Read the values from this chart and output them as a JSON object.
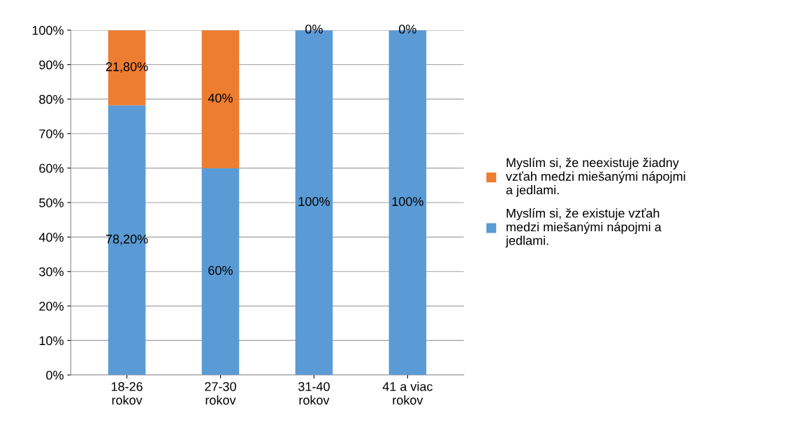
{
  "chart_data": {
    "type": "bar",
    "stacked": true,
    "categories": [
      "18-26\nrokov",
      "27-30\nrokov",
      "31-40\nrokov",
      "41 a viac\nrokov"
    ],
    "series": [
      {
        "name": "Myslím si, že existuje vzťah\nmedzi miešanými nápojmi a\njedlami.",
        "color": "#5b9bd5",
        "values": [
          78.2,
          60,
          100,
          100
        ],
        "value_labels": [
          "78,20%",
          "60%",
          "100%",
          "100%"
        ]
      },
      {
        "name": "Myslím si, že neexistuje žiadny\nvzťah medzi miešanými nápojmi\na jedlami.",
        "color": "#ed7d31",
        "values": [
          21.8,
          40,
          0,
          0
        ],
        "value_labels": [
          "21,80%",
          "40%",
          "0%",
          "0%"
        ]
      }
    ],
    "ylim": [
      0,
      100
    ],
    "yticks": [
      {
        "value": 0,
        "label": "0%"
      },
      {
        "value": 10,
        "label": "10%"
      },
      {
        "value": 20,
        "label": "20%"
      },
      {
        "value": 30,
        "label": "30%"
      },
      {
        "value": 40,
        "label": "40%"
      },
      {
        "value": 50,
        "label": "50%"
      },
      {
        "value": 60,
        "label": "60%"
      },
      {
        "value": 70,
        "label": "70%"
      },
      {
        "value": 80,
        "label": "80%"
      },
      {
        "value": 90,
        "label": "90%"
      },
      {
        "value": 100,
        "label": "100%"
      }
    ],
    "grid": "y",
    "legend": "right"
  }
}
